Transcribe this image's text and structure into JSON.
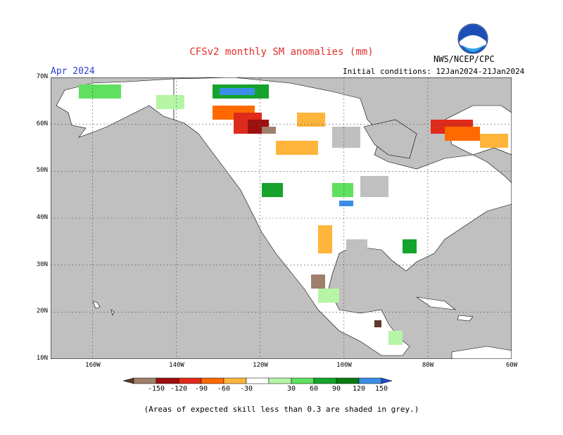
{
  "title": "CFSv2 monthly SM anomalies (mm)",
  "month": "Apr 2024",
  "initial_conditions": "Initial conditions: 12Jan2024-21Jan2024",
  "agency": "NWS/NCEP/CPC",
  "logo_text": "NOAA",
  "skill_note": "(Areas of expected skill less than 0.3 are shaded in grey.)",
  "lat_labels": [
    "70N",
    "60N",
    "50N",
    "40N",
    "30N",
    "20N",
    "10N"
  ],
  "lon_labels": [
    "160W",
    "140W",
    "120W",
    "100W",
    "80W",
    "60W"
  ],
  "colorbar": {
    "labels": [
      "-150",
      "-120",
      "-90",
      "-60",
      "-30",
      "30",
      "60",
      "90",
      "120",
      "150"
    ],
    "colors": [
      "#5a3a2a",
      "#a07f6c",
      "#9e0f0f",
      "#e02a1a",
      "#ff6a00",
      "#ffb43c",
      "#ffffff",
      "#b5f5a5",
      "#5fe05f",
      "#16a32c",
      "#0a7a12",
      "#3b8ee8",
      "#1f4fc7"
    ]
  },
  "colors": {
    "land_skill": "#ffffff",
    "no_skill_grey": "#c0c0c0",
    "title_red": "#e0302a",
    "month_blue": "#2a3fd6"
  }
}
